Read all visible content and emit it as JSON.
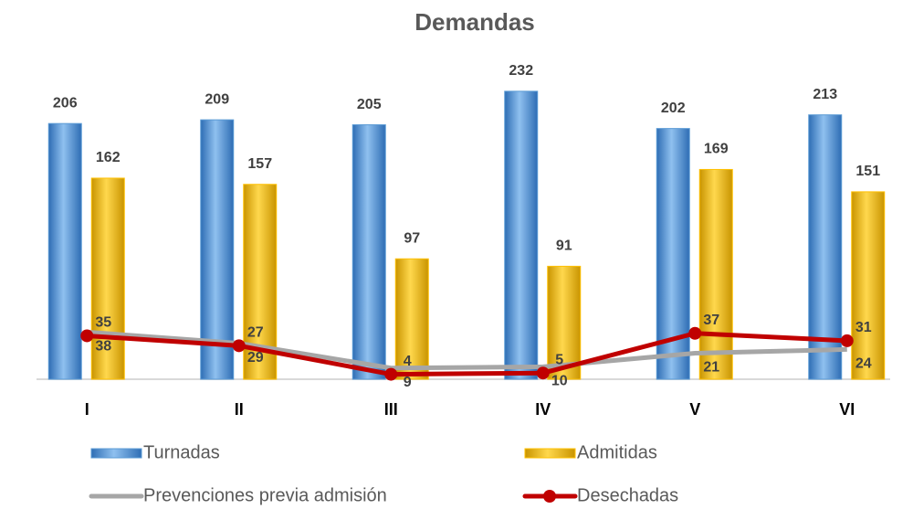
{
  "chart_data": {
    "type": "bar",
    "title": "Demandas",
    "categories": [
      "I",
      "II",
      "III",
      "IV",
      "V",
      "VI"
    ],
    "ylim": [
      0,
      240
    ],
    "series": [
      {
        "name": "Turnadas",
        "type": "bar",
        "color": "#5b9bd5",
        "values": [
          206,
          209,
          205,
          232,
          202,
          213
        ]
      },
      {
        "name": "Admitidas",
        "type": "bar",
        "color": "#ffc000",
        "values": [
          162,
          157,
          97,
          91,
          169,
          151
        ]
      },
      {
        "name": "Prevenciones previa admisión",
        "type": "line",
        "color": "#a6a6a6",
        "values": [
          38,
          29,
          9,
          10,
          21,
          24
        ]
      },
      {
        "name": "Desechadas",
        "type": "line",
        "color": "#c00000",
        "values": [
          35,
          27,
          4,
          5,
          37,
          31
        ]
      }
    ]
  }
}
